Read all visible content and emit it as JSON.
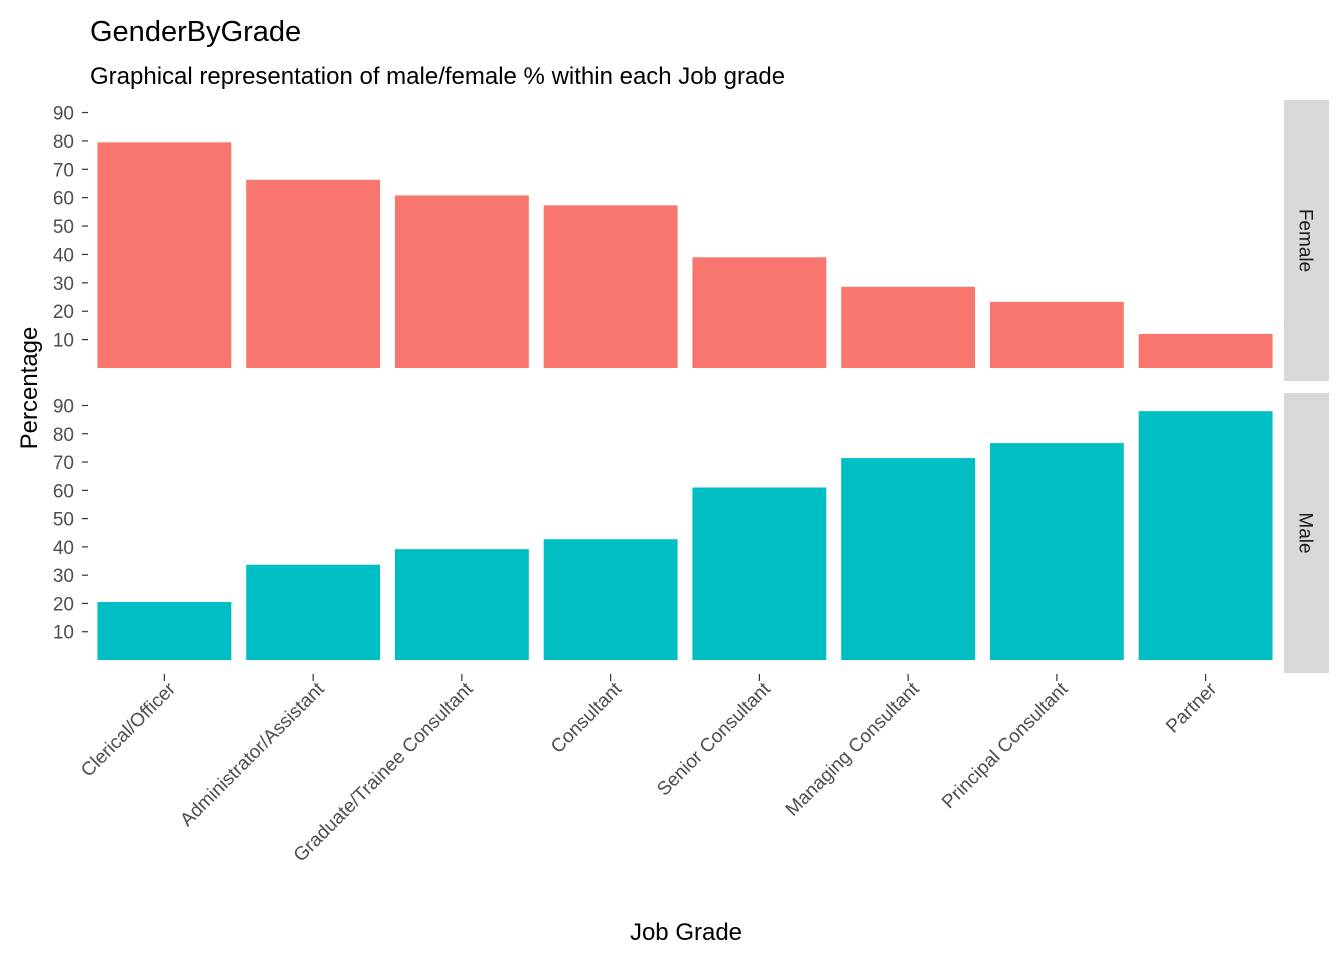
{
  "chart_data": {
    "type": "bar",
    "title": "GenderByGrade",
    "subtitle": "Graphical representation of male/female % within each Job grade",
    "xlabel": "Job Grade",
    "ylabel": "Percentage",
    "categories": [
      "Clerical/Officer",
      "Administrator/Assistant",
      "Graduate/Trainee Consultant",
      "Consultant",
      "Senior Consultant",
      "Managing Consultant",
      "Principal Consultant",
      "Partner"
    ],
    "yticks": [
      10,
      20,
      30,
      40,
      50,
      60,
      70,
      80,
      90
    ],
    "ylim": [
      0,
      90
    ],
    "grid": false,
    "legend": "none",
    "facet": "rows",
    "series": [
      {
        "name": "Female",
        "color": "#F8766D",
        "values": [
          79.5,
          66.3,
          60.8,
          57.3,
          39.0,
          28.6,
          23.3,
          12.0
        ]
      },
      {
        "name": "Male",
        "color": "#00BFC4",
        "values": [
          20.5,
          33.7,
          39.2,
          42.7,
          61.0,
          71.4,
          76.7,
          88.0
        ]
      }
    ]
  }
}
